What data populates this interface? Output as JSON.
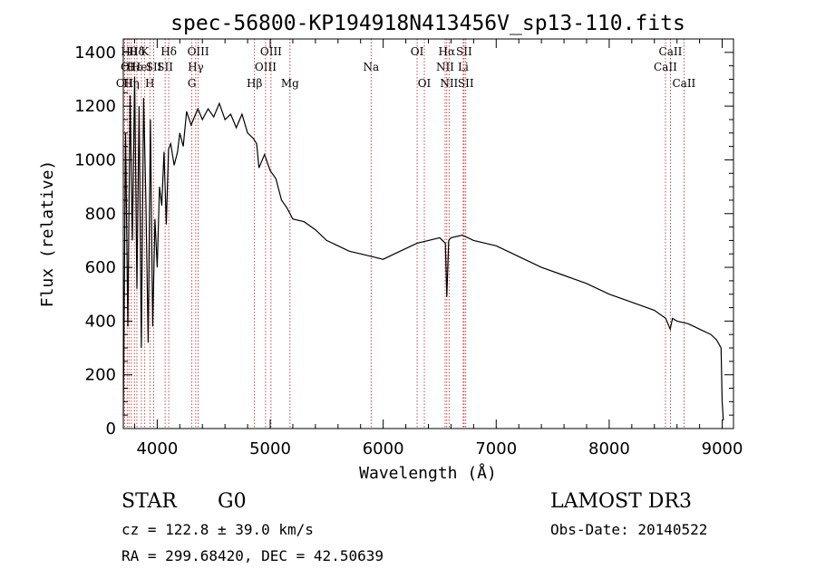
{
  "chart_data": {
    "type": "line",
    "title": "spec-56800-KP194918N413456V_sp13-110.fits",
    "xlabel": "Wavelength (Å)",
    "ylabel": "Flux (relative)",
    "xlim": [
      3700,
      9100
    ],
    "ylim": [
      0,
      1450
    ],
    "x_ticks": [
      4000,
      5000,
      6000,
      7000,
      8000,
      9000
    ],
    "x_tick_labels": [
      "4000",
      "5000",
      "6000",
      "7000",
      "8000",
      "9000"
    ],
    "y_ticks": [
      0,
      200,
      400,
      600,
      800,
      1000,
      1200,
      1400
    ],
    "y_tick_labels": [
      "0",
      "200",
      "400",
      "600",
      "800",
      "1000",
      "1200",
      "1400"
    ],
    "line_color": "#000000",
    "marker_color": "#b22222",
    "spectrum": {
      "x": [
        3700,
        3720,
        3740,
        3760,
        3780,
        3800,
        3820,
        3840,
        3860,
        3880,
        3900,
        3920,
        3940,
        3960,
        3980,
        4000,
        4020,
        4040,
        4060,
        4080,
        4100,
        4120,
        4150,
        4180,
        4200,
        4230,
        4260,
        4300,
        4330,
        4360,
        4400,
        4450,
        4500,
        4550,
        4600,
        4650,
        4700,
        4750,
        4800,
        4850,
        4880,
        4900,
        4950,
        5000,
        5050,
        5100,
        5150,
        5200,
        5300,
        5400,
        5500,
        5600,
        5700,
        5800,
        5900,
        6000,
        6100,
        6200,
        6300,
        6400,
        6500,
        6550,
        6563,
        6580,
        6600,
        6700,
        6800,
        7000,
        7200,
        7400,
        7600,
        7800,
        8000,
        8200,
        8400,
        8500,
        8540,
        8560,
        8600,
        8700,
        8800,
        8900,
        8950,
        8990,
        9000,
        9010
      ],
      "y": [
        50,
        1100,
        380,
        1240,
        700,
        1310,
        520,
        1200,
        300,
        1230,
        850,
        320,
        1150,
        380,
        780,
        600,
        900,
        830,
        1030,
        760,
        1040,
        1060,
        980,
        1030,
        1100,
        1050,
        1180,
        1130,
        1160,
        1190,
        1150,
        1190,
        1160,
        1210,
        1150,
        1170,
        1120,
        1170,
        1100,
        1080,
        1060,
        970,
        1020,
        960,
        930,
        850,
        820,
        780,
        770,
        740,
        700,
        680,
        660,
        650,
        640,
        630,
        650,
        670,
        690,
        700,
        710,
        690,
        490,
        700,
        710,
        720,
        700,
        680,
        640,
        600,
        570,
        540,
        500,
        470,
        440,
        410,
        370,
        410,
        400,
        390,
        370,
        350,
        330,
        300,
        100,
        30
      ]
    },
    "line_markers": [
      {
        "x": 3712,
        "labels": [
          {
            "text": "OII",
            "row": 3
          }
        ]
      },
      {
        "x": 3734,
        "labels": [
          {
            "text": "OI",
            "row": 2
          }
        ]
      },
      {
        "x": 3750,
        "labels": [
          {
            "text": "Hθ",
            "row": 1
          }
        ]
      },
      {
        "x": 3771,
        "labels": [
          {
            "text": "Hη",
            "row": 3
          }
        ]
      },
      {
        "x": 3798,
        "labels": [
          {
            "text": "Hε",
            "row": 2
          }
        ]
      },
      {
        "x": 3820,
        "labels": [
          {
            "text": "Hδ",
            "row": 1
          }
        ]
      },
      {
        "x": 3860,
        "labels": [
          {
            "text": "HeI",
            "row": 2
          }
        ]
      },
      {
        "x": 3890,
        "labels": [
          {
            "text": "K",
            "row": 1
          }
        ]
      },
      {
        "x": 3935,
        "labels": [
          {
            "text": "H",
            "row": 3
          }
        ]
      },
      {
        "x": 3970,
        "labels": [
          {
            "text": "SII",
            "row": 2
          }
        ]
      },
      {
        "x": 4070,
        "labels": [
          {
            "text": "SII",
            "row": 2
          }
        ]
      },
      {
        "x": 4102,
        "labels": [
          {
            "text": "Hδ",
            "row": 1
          }
        ]
      },
      {
        "x": 4307,
        "labels": [
          {
            "text": "G",
            "row": 3
          }
        ]
      },
      {
        "x": 4341,
        "labels": [
          {
            "text": "Hγ",
            "row": 2
          }
        ]
      },
      {
        "x": 4363,
        "labels": [
          {
            "text": "OIII",
            "row": 1
          }
        ]
      },
      {
        "x": 4861,
        "labels": [
          {
            "text": "Hβ",
            "row": 3
          }
        ]
      },
      {
        "x": 4959,
        "labels": [
          {
            "text": "OIII",
            "row": 2
          }
        ]
      },
      {
        "x": 5007,
        "labels": [
          {
            "text": "OIII",
            "row": 1
          }
        ]
      },
      {
        "x": 5175,
        "labels": [
          {
            "text": "Mg",
            "row": 3
          }
        ]
      },
      {
        "x": 5893,
        "labels": [
          {
            "text": "Na",
            "row": 2
          }
        ]
      },
      {
        "x": 6300,
        "labels": [
          {
            "text": "OI",
            "row": 1
          }
        ]
      },
      {
        "x": 6364,
        "labels": [
          {
            "text": "OI",
            "row": 3
          }
        ]
      },
      {
        "x": 6548,
        "labels": [
          {
            "text": "NII",
            "row": 2
          }
        ]
      },
      {
        "x": 6563,
        "labels": [
          {
            "text": "Hα",
            "row": 1
          }
        ]
      },
      {
        "x": 6583,
        "labels": [
          {
            "text": "NII",
            "row": 3
          }
        ]
      },
      {
        "x": 6708,
        "labels": [
          {
            "text": "Li",
            "row": 2
          }
        ]
      },
      {
        "x": 6716,
        "labels": [
          {
            "text": "SII",
            "row": 1
          }
        ]
      },
      {
        "x": 6731,
        "labels": [
          {
            "text": "SII",
            "row": 3
          }
        ]
      },
      {
        "x": 8498,
        "labels": [
          {
            "text": "CaII",
            "row": 2
          }
        ]
      },
      {
        "x": 8542,
        "labels": [
          {
            "text": "CaII",
            "row": 1
          }
        ]
      },
      {
        "x": 8662,
        "labels": [
          {
            "text": "CaII",
            "row": 3
          }
        ]
      }
    ]
  },
  "info": {
    "object_class": "STAR",
    "subclass": "G0",
    "survey": "LAMOST DR3",
    "redshift": "cz = 122.8 ± 39.0 km/s",
    "obs_date": "Obs-Date: 20140522",
    "coords": "RA = 299.68420, DEC =  42.50639"
  }
}
